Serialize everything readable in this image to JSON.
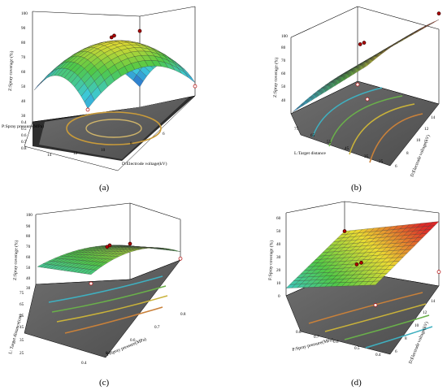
{
  "figure": {
    "panels": [
      {
        "label": "(a)",
        "zlabel": "Z:Spray coverage (%)",
        "ylabel": "P:Spray pressure(MPa)",
        "xlabel": "D:Electrode voltage(kV)",
        "zticks": [
          "30",
          "40",
          "50",
          "60",
          "70",
          "80",
          "90",
          "100"
        ],
        "yticks": [
          "0.4",
          "0.5",
          "0.6",
          "0.7",
          "0.8"
        ],
        "xticks": [
          "14",
          "12",
          "10",
          "8",
          "6"
        ]
      },
      {
        "label": "(b)",
        "zlabel": "Z:Spray coverage (%)",
        "ylabel": "L:Target distance",
        "xlabel": "D:Electrode voltage(kV)",
        "zticks": [
          "30",
          "40",
          "50",
          "60",
          "70",
          "80",
          "90",
          "100"
        ],
        "yticks": [
          "75",
          "65",
          "55",
          "45",
          "35",
          "25"
        ],
        "xticks": [
          "6",
          "8",
          "10",
          "12",
          "14"
        ]
      },
      {
        "label": "(c)",
        "zlabel": "Z:Spray coverage (%)",
        "ylabel": "L: Target distance(cm)",
        "xlabel": "P:Spray pressure(MPa)",
        "zticks": [
          "30",
          "40",
          "50",
          "60",
          "70",
          "80",
          "90",
          "100"
        ],
        "yticks": [
          "25",
          "35",
          "45",
          "55",
          "65",
          "75"
        ],
        "xticks": [
          "0.4",
          "0.5",
          "0.6",
          "0.7",
          "0.8"
        ]
      },
      {
        "label": "(d)",
        "zlabel": "F:Spray coverage (%)",
        "ylabel": "P:Spray pressure(MPa)",
        "xlabel": "D:Electrode voltage(kV)",
        "zticks": [
          "0",
          "10",
          "20",
          "30",
          "40",
          "50",
          "60"
        ],
        "yticks": [
          "0.8",
          "0.7",
          "0.6",
          "0.5",
          "0.4"
        ],
        "xticks": [
          "6",
          "8",
          "10",
          "12",
          "14"
        ]
      }
    ]
  },
  "chart_data": [
    {
      "type": "surface3d",
      "title": "",
      "x_axis": "D:Electrode voltage(kV)",
      "y_axis": "P:Spray pressure(MPa)",
      "z_axis": "Z:Spray coverage (%)",
      "x_range": [
        6,
        14
      ],
      "y_range": [
        0.4,
        0.8
      ],
      "z_range": [
        30,
        100
      ],
      "surface": {
        "kind": "dome",
        "peak": 78,
        "edge_min": 50
      },
      "design_points": [
        {
          "z": 82,
          "position": "above"
        },
        {
          "z": 80,
          "position": "above"
        },
        {
          "z": 40,
          "position": "below"
        },
        {
          "z": 38,
          "position": "below"
        },
        {
          "z": 78,
          "position": "above"
        }
      ],
      "contour": "closed ellipses",
      "colormap": "blue-green-yellow-red"
    },
    {
      "type": "surface3d",
      "title": "",
      "x_axis": "D:Electrode voltage(kV)",
      "y_axis": "L:Target distance",
      "z_axis": "Z:Spray coverage (%)",
      "x_range": [
        6,
        14
      ],
      "y_range": [
        25,
        75
      ],
      "z_range": [
        30,
        100
      ],
      "surface": {
        "kind": "rising ridge",
        "min": 40,
        "max": 98
      },
      "design_points": [
        {
          "z": 88,
          "position": "above"
        },
        {
          "z": 87,
          "position": "above"
        },
        {
          "z": 43,
          "position": "below"
        },
        {
          "z": 98,
          "position": "above"
        },
        {
          "z": 40,
          "position": "below"
        }
      ],
      "contour": "open arcs",
      "colormap": "blue-green-yellow-red"
    },
    {
      "type": "surface3d",
      "title": "",
      "x_axis": "P:Spray pressure(MPa)",
      "y_axis": "L: Target distance(cm)",
      "z_axis": "Z:Spray coverage (%)",
      "x_range": [
        0.4,
        0.8
      ],
      "y_range": [
        25,
        75
      ],
      "z_range": [
        30,
        100
      ],
      "surface": {
        "kind": "gentle dome",
        "min": 50,
        "max": 72
      },
      "design_points": [
        {
          "z": 72,
          "position": "above"
        },
        {
          "z": 70,
          "position": "above"
        },
        {
          "z": 48,
          "position": "below"
        },
        {
          "z": 55,
          "position": "below"
        },
        {
          "z": 60,
          "position": "above"
        }
      ],
      "contour": "open arcs",
      "colormap": "blue-green-yellow-red"
    },
    {
      "type": "surface3d",
      "title": "",
      "x_axis": "D:Electrode voltage(kV)",
      "y_axis": "P:Spray pressure(MPa)",
      "z_axis": "F:Spray coverage (%)",
      "x_range": [
        6,
        14
      ],
      "y_range": [
        0.4,
        0.8
      ],
      "z_range": [
        0,
        60
      ],
      "surface": {
        "kind": "tilted plane",
        "min": 18,
        "max": 58
      },
      "design_points": [
        {
          "z": 33,
          "position": "above"
        },
        {
          "z": 31,
          "position": "above"
        },
        {
          "z": 20,
          "position": "below"
        },
        {
          "z": 18,
          "position": "below"
        },
        {
          "z": 40,
          "position": "above"
        }
      ],
      "contour": "straight bands",
      "colormap": "blue-green-yellow-red"
    }
  ]
}
